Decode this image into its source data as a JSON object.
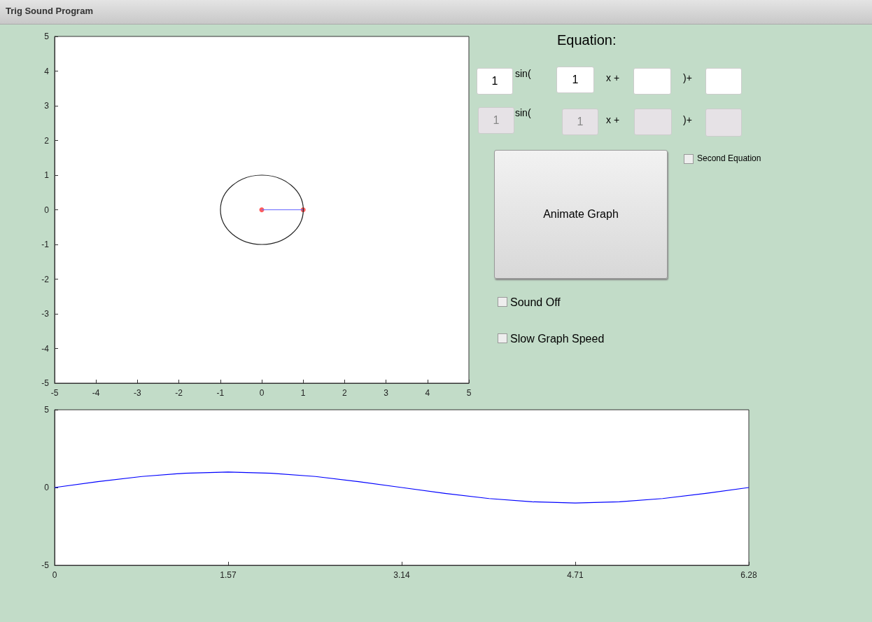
{
  "chart_data": [
    {
      "type": "line",
      "xlim": [
        -5,
        5
      ],
      "ylim": [
        -5,
        5
      ],
      "xticks": [
        -5,
        -4,
        -3,
        -2,
        -1,
        0,
        1,
        2,
        3,
        4,
        5
      ],
      "yticks": [
        -5,
        -4,
        -3,
        -2,
        -1,
        0,
        1,
        2,
        3,
        4,
        5
      ],
      "series": [
        {
          "type": "line",
          "color": "#6666ff",
          "marker": "none",
          "x": [
            0,
            1
          ],
          "values": [
            0,
            0
          ]
        },
        {
          "type": "scatter",
          "color": "#ff3333",
          "marker": "circle",
          "x": [
            0,
            1
          ],
          "values": [
            0,
            0
          ]
        }
      ]
    },
    {
      "type": "line",
      "xlim": [
        0,
        6.28
      ],
      "ylim": [
        -5,
        5
      ],
      "xticks": [
        0,
        1.57,
        3.14,
        4.71,
        6.28
      ],
      "yticks": [
        -5,
        0,
        5
      ],
      "series": [
        {
          "color": "#0000ff",
          "marker": "none",
          "x": [
            0,
            0.39,
            0.79,
            1.18,
            1.57,
            1.96,
            2.36,
            2.75,
            3.14,
            3.53,
            3.93,
            4.32,
            4.71,
            5.11,
            5.5,
            5.89,
            6.28
          ],
          "values": [
            0,
            0.38,
            0.71,
            0.92,
            1,
            0.92,
            0.71,
            0.38,
            0,
            -0.38,
            -0.71,
            -0.92,
            -1,
            -0.92,
            -0.71,
            -0.38,
            0
          ]
        }
      ]
    },
    {
      "type": "other",
      "title": "Equation:",
      "annotations": [
        "Trig Sound Program",
        "1",
        "sin(",
        "1",
        "x +",
        ")+",
        "1",
        "sin(",
        "1",
        "x +",
        ")+",
        "Second Equation",
        "Animate Graph",
        "Sound Off",
        "Slow Graph Speed"
      ]
    }
  ]
}
